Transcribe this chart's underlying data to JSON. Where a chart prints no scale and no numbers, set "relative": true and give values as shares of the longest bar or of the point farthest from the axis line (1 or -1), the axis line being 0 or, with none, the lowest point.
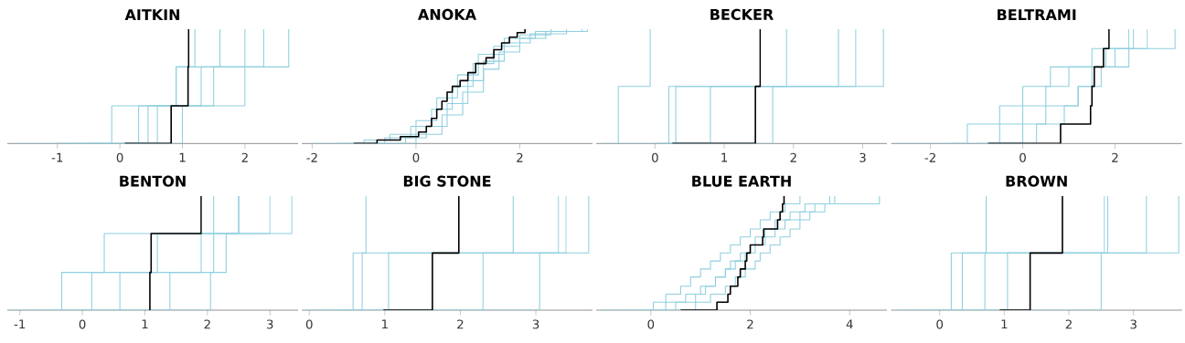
{
  "chart_data": [
    {
      "type": "step",
      "title": "AITKIN",
      "relative": true,
      "tick_labels": "x",
      "xlim": [
        -1.8,
        2.85
      ],
      "xticks": [
        -1,
        0,
        1,
        2
      ],
      "series": [
        {
          "color": "#8fcfdf",
          "x": [
            -1.7,
            -0.13,
            0.9,
            1.6
          ],
          "values": [
            0,
            0.33,
            0.67,
            1
          ]
        },
        {
          "color": "#8fcfdf",
          "x": [
            -1.0,
            0.3,
            2.0,
            2.7
          ],
          "values": [
            0,
            0.33,
            0.67,
            1
          ]
        },
        {
          "color": "#8fcfdf",
          "x": [
            -0.5,
            0.45,
            1.3,
            2.3
          ],
          "values": [
            0,
            0.33,
            0.67,
            1
          ]
        },
        {
          "color": "#8fcfdf",
          "x": [
            0.1,
            1.0,
            1.5,
            2.0
          ],
          "values": [
            0,
            0.33,
            0.67,
            1
          ]
        },
        {
          "color": "#8fcfdf",
          "x": [
            -0.8,
            0.6,
            0.9,
            1.2
          ],
          "values": [
            0,
            0.33,
            0.67,
            1
          ]
        },
        {
          "color": "#000000",
          "x": [
            0.08,
            0.82,
            1.09,
            1.1
          ],
          "values": [
            0,
            0.33,
            0.67,
            1
          ]
        }
      ]
    },
    {
      "type": "step",
      "title": "ANOKA",
      "relative": true,
      "tick_labels": "x",
      "xlim": [
        -2.2,
        3.4
      ],
      "xticks": [
        -2,
        0,
        2
      ],
      "series": [
        {
          "color": "#8fcfdf",
          "x": [
            -2.0,
            -1.0,
            -0.5,
            0.0,
            0.4,
            0.8,
            1.2,
            1.7,
            2.3,
            3.2
          ],
          "values": [
            0,
            0.03,
            0.08,
            0.2,
            0.4,
            0.6,
            0.78,
            0.92,
            0.98,
            1
          ]
        },
        {
          "color": "#8fcfdf",
          "x": [
            -1.5,
            -0.6,
            -0.1,
            0.3,
            0.7,
            1.1,
            1.5,
            2.0,
            2.6
          ],
          "values": [
            0,
            0.05,
            0.15,
            0.3,
            0.5,
            0.7,
            0.85,
            0.95,
            1
          ]
        },
        {
          "color": "#8fcfdf",
          "x": [
            -1.0,
            -0.2,
            0.2,
            0.6,
            1.0,
            1.3,
            1.7,
            2.2,
            2.9
          ],
          "values": [
            0,
            0.05,
            0.15,
            0.35,
            0.55,
            0.72,
            0.88,
            0.96,
            1
          ]
        },
        {
          "color": "#8fcfdf",
          "x": [
            -0.8,
            0.0,
            0.5,
            0.9,
            1.3,
            1.6,
            2.0,
            2.5,
            3.3
          ],
          "values": [
            0,
            0.08,
            0.25,
            0.45,
            0.65,
            0.8,
            0.92,
            0.98,
            1
          ]
        },
        {
          "color": "#000000",
          "x": [
            -1.2,
            -0.75,
            -0.3,
            0.05,
            0.2,
            0.3,
            0.4,
            0.5,
            0.6,
            0.7,
            0.85,
            1.0,
            1.15,
            1.35,
            1.5,
            1.65,
            1.8,
            1.95,
            2.1
          ],
          "values": [
            0,
            0.03,
            0.06,
            0.1,
            0.15,
            0.22,
            0.3,
            0.37,
            0.45,
            0.5,
            0.55,
            0.62,
            0.7,
            0.75,
            0.82,
            0.88,
            0.93,
            0.97,
            1
          ]
        }
      ]
    },
    {
      "type": "step",
      "title": "BECKER",
      "relative": true,
      "tick_labels": "x",
      "xlim": [
        -0.85,
        3.35
      ],
      "xticks": [
        0,
        1,
        2,
        3
      ],
      "series": [
        {
          "color": "#8fcfdf",
          "x": [
            -0.75,
            -0.53,
            -0.07
          ],
          "values": [
            0,
            0.5,
            1
          ]
        },
        {
          "color": "#8fcfdf",
          "x": [
            -0.5,
            0.3,
            2.65
          ],
          "values": [
            0,
            0.5,
            1
          ]
        },
        {
          "color": "#8fcfdf",
          "x": [
            0.0,
            0.2,
            3.3
          ],
          "values": [
            0,
            0.5,
            1
          ]
        },
        {
          "color": "#8fcfdf",
          "x": [
            0.1,
            0.8,
            1.9
          ],
          "values": [
            0,
            0.5,
            1
          ]
        },
        {
          "color": "#8fcfdf",
          "x": [
            0.2,
            1.7,
            2.9
          ],
          "values": [
            0,
            0.5,
            1
          ]
        },
        {
          "color": "#000000",
          "x": [
            0.25,
            1.45,
            1.52
          ],
          "values": [
            0,
            0.5,
            1
          ]
        }
      ]
    },
    {
      "type": "step",
      "title": "BELTRAMI",
      "relative": true,
      "tick_labels": "x",
      "xlim": [
        -2.85,
        3.45
      ],
      "xticks": [
        -2,
        0,
        2
      ],
      "series": [
        {
          "color": "#8fcfdf",
          "x": [
            -2.8,
            -1.2,
            -0.5,
            0.0,
            0.6,
            1.5,
            3.3
          ],
          "values": [
            0,
            0.17,
            0.33,
            0.5,
            0.67,
            0.83,
            1
          ]
        },
        {
          "color": "#8fcfdf",
          "x": [
            -1.6,
            -0.5,
            0.0,
            0.5,
            1.0,
            2.0,
            2.7
          ],
          "values": [
            0,
            0.17,
            0.33,
            0.5,
            0.67,
            0.83,
            1
          ]
        },
        {
          "color": "#8fcfdf",
          "x": [
            -1.0,
            0.0,
            0.5,
            1.2,
            1.7,
            2.3,
            2.4
          ],
          "values": [
            0,
            0.17,
            0.33,
            0.5,
            0.67,
            0.83,
            1
          ]
        },
        {
          "color": "#8fcfdf",
          "x": [
            -0.5,
            0.3,
            0.9,
            1.2,
            1.5,
            1.8,
            2.3
          ],
          "values": [
            0,
            0.17,
            0.33,
            0.5,
            0.67,
            0.83,
            1
          ]
        },
        {
          "color": "#000000",
          "x": [
            -0.75,
            0.82,
            1.47,
            1.5,
            1.55,
            1.75,
            1.87
          ],
          "values": [
            0,
            0.17,
            0.33,
            0.5,
            0.67,
            0.83,
            1
          ]
        }
      ]
    },
    {
      "type": "step",
      "title": "BENTON",
      "relative": true,
      "tick_labels": "x",
      "xlim": [
        -1.2,
        3.45
      ],
      "xticks": [
        -1,
        0,
        1,
        2,
        3
      ],
      "series": [
        {
          "color": "#8fcfdf",
          "x": [
            -1.15,
            -0.33,
            0.35,
            2.5
          ],
          "values": [
            0,
            0.33,
            0.67,
            1
          ]
        },
        {
          "color": "#8fcfdf",
          "x": [
            -0.8,
            0.15,
            1.2,
            3.35
          ],
          "values": [
            0,
            0.33,
            0.67,
            1
          ]
        },
        {
          "color": "#8fcfdf",
          "x": [
            -0.3,
            0.6,
            2.3,
            3.0
          ],
          "values": [
            0,
            0.33,
            0.67,
            1
          ]
        },
        {
          "color": "#8fcfdf",
          "x": [
            0.0,
            1.4,
            1.9,
            2.1
          ],
          "values": [
            0,
            0.33,
            0.67,
            1
          ]
        },
        {
          "color": "#8fcfdf",
          "x": [
            0.5,
            2.05,
            2.1,
            2.5
          ],
          "values": [
            0,
            0.33,
            0.67,
            1
          ]
        },
        {
          "color": "#000000",
          "x": [
            1.07,
            1.08,
            1.1,
            1.9
          ],
          "values": [
            0,
            0.33,
            0.67,
            1
          ]
        }
      ]
    },
    {
      "type": "step",
      "title": "BIG STONE",
      "relative": true,
      "tick_labels": "x",
      "xlim": [
        -0.1,
        3.75
      ],
      "xticks": [
        0,
        1,
        2,
        3
      ],
      "series": [
        {
          "color": "#8fcfdf",
          "x": [
            -0.05,
            0.58,
            3.7
          ],
          "values": [
            0,
            0.5,
            1
          ]
        },
        {
          "color": "#8fcfdf",
          "x": [
            0.1,
            0.7,
            0.75
          ],
          "values": [
            0,
            0.5,
            1
          ]
        },
        {
          "color": "#8fcfdf",
          "x": [
            0.5,
            1.05,
            3.4
          ],
          "values": [
            0,
            0.5,
            1
          ]
        },
        {
          "color": "#8fcfdf",
          "x": [
            0.3,
            2.3,
            2.7
          ],
          "values": [
            0,
            0.5,
            1
          ]
        },
        {
          "color": "#8fcfdf",
          "x": [
            0.6,
            3.05,
            3.3
          ],
          "values": [
            0,
            0.5,
            1
          ]
        },
        {
          "color": "#000000",
          "x": [
            0.98,
            1.63,
            1.98
          ],
          "values": [
            0,
            0.5,
            1
          ]
        }
      ]
    },
    {
      "type": "step",
      "title": "BLUE EARTH",
      "relative": true,
      "tick_labels": "x",
      "xlim": [
        -1.1,
        4.75
      ],
      "xticks": [
        0,
        2,
        4
      ],
      "series": [
        {
          "color": "#8fcfdf",
          "x": [
            -1.0,
            0.05,
            0.3,
            0.6,
            0.8,
            1.0,
            1.2,
            1.4,
            1.6,
            1.8,
            2.0,
            2.2,
            2.4,
            2.7,
            3.0
          ],
          "values": [
            0,
            0.07,
            0.14,
            0.21,
            0.29,
            0.36,
            0.43,
            0.5,
            0.57,
            0.64,
            0.71,
            0.79,
            0.86,
            0.93,
            1
          ]
        },
        {
          "color": "#8fcfdf",
          "x": [
            -0.5,
            0.5,
            0.9,
            1.1,
            1.3,
            1.5,
            1.7,
            1.9,
            2.1,
            2.3,
            2.5,
            2.7,
            3.0,
            3.3,
            3.7
          ],
          "values": [
            0,
            0.07,
            0.14,
            0.21,
            0.29,
            0.36,
            0.43,
            0.5,
            0.57,
            0.64,
            0.71,
            0.79,
            0.86,
            0.93,
            1
          ]
        },
        {
          "color": "#8fcfdf",
          "x": [
            0.0,
            0.9,
            1.2,
            1.5,
            1.7,
            1.9,
            2.1,
            2.2,
            2.4,
            2.6,
            2.8,
            3.0,
            3.2,
            3.5,
            4.6
          ],
          "values": [
            0,
            0.07,
            0.14,
            0.21,
            0.29,
            0.36,
            0.43,
            0.5,
            0.57,
            0.64,
            0.71,
            0.79,
            0.86,
            0.93,
            1
          ]
        },
        {
          "color": "#8fcfdf",
          "x": [
            0.2,
            0.3,
            0.7,
            1.0,
            1.3,
            1.5,
            1.6,
            1.8,
            2.0,
            2.1,
            2.3,
            2.5,
            2.8,
            3.1,
            3.6
          ],
          "values": [
            0,
            0.07,
            0.14,
            0.21,
            0.29,
            0.36,
            0.43,
            0.5,
            0.57,
            0.64,
            0.71,
            0.79,
            0.86,
            0.93,
            1
          ]
        },
        {
          "color": "#000000",
          "x": [
            0.6,
            1.33,
            1.55,
            1.6,
            1.75,
            1.8,
            1.9,
            1.93,
            2.0,
            2.25,
            2.27,
            2.55,
            2.6,
            2.65,
            2.68
          ],
          "values": [
            0,
            0.07,
            0.14,
            0.21,
            0.29,
            0.36,
            0.43,
            0.5,
            0.57,
            0.64,
            0.71,
            0.79,
            0.86,
            0.93,
            1
          ]
        }
      ]
    },
    {
      "type": "step",
      "title": "BROWN",
      "relative": true,
      "tick_labels": "x",
      "xlim": [
        -0.75,
        3.75
      ],
      "xticks": [
        0,
        1,
        2,
        3
      ],
      "series": [
        {
          "color": "#8fcfdf",
          "x": [
            -0.65,
            0.18,
            2.55
          ],
          "values": [
            0,
            0.5,
            1
          ]
        },
        {
          "color": "#8fcfdf",
          "x": [
            -0.3,
            0.35,
            3.7
          ],
          "values": [
            0,
            0.5,
            1
          ]
        },
        {
          "color": "#8fcfdf",
          "x": [
            0.2,
            1.05,
            3.2
          ],
          "values": [
            0,
            0.5,
            1
          ]
        },
        {
          "color": "#8fcfdf",
          "x": [
            0.5,
            2.5,
            2.6
          ],
          "values": [
            0,
            0.5,
            1
          ]
        },
        {
          "color": "#8fcfdf",
          "x": [
            0.0,
            0.7,
            0.72
          ],
          "values": [
            0,
            0.5,
            1
          ]
        },
        {
          "color": "#000000",
          "x": [
            0.93,
            1.4,
            1.9
          ],
          "values": [
            0,
            0.5,
            1
          ]
        }
      ]
    }
  ]
}
